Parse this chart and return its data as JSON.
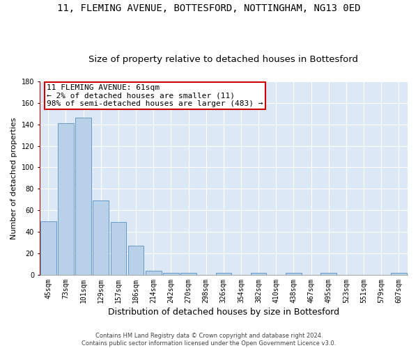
{
  "title": "11, FLEMING AVENUE, BOTTESFORD, NOTTINGHAM, NG13 0ED",
  "subtitle": "Size of property relative to detached houses in Bottesford",
  "xlabel": "Distribution of detached houses by size in Bottesford",
  "ylabel": "Number of detached properties",
  "categories": [
    "45sqm",
    "73sqm",
    "101sqm",
    "129sqm",
    "157sqm",
    "186sqm",
    "214sqm",
    "242sqm",
    "270sqm",
    "298sqm",
    "326sqm",
    "354sqm",
    "382sqm",
    "410sqm",
    "438sqm",
    "467sqm",
    "495sqm",
    "523sqm",
    "551sqm",
    "579sqm",
    "607sqm"
  ],
  "values": [
    50,
    141,
    146,
    69,
    49,
    27,
    4,
    2,
    2,
    0,
    2,
    0,
    2,
    0,
    2,
    0,
    2,
    0,
    0,
    0,
    2
  ],
  "bar_color": "#b8d0e8",
  "bar_edge_color": "#6699cc",
  "ylim": [
    0,
    180
  ],
  "yticks": [
    0,
    20,
    40,
    60,
    80,
    100,
    120,
    140,
    160,
    180
  ],
  "annotation_text": "11 FLEMING AVENUE: 61sqm\n← 2% of detached houses are smaller (11)\n98% of semi-detached houses are larger (483) →",
  "annotation_box_color": "#ffffff",
  "annotation_box_edge_color": "#cc0000",
  "vline_color": "#cc0000",
  "background_color": "#dce8f5",
  "grid_color": "#ffffff",
  "footer_text": "Contains HM Land Registry data © Crown copyright and database right 2024.\nContains public sector information licensed under the Open Government Licence v3.0.",
  "title_fontsize": 10,
  "subtitle_fontsize": 9.5,
  "xlabel_fontsize": 9,
  "ylabel_fontsize": 8,
  "tick_fontsize": 7,
  "annotation_fontsize": 8,
  "footer_fontsize": 6
}
